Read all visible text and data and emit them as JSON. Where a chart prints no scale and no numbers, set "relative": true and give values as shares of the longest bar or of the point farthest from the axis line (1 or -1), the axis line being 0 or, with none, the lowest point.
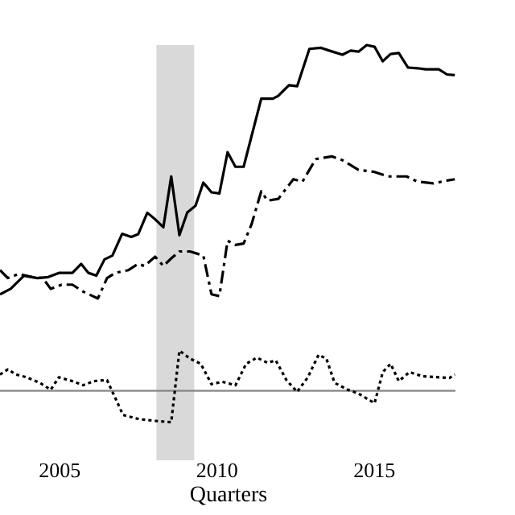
{
  "chart_data": {
    "type": "line",
    "relative": true,
    "xlabel": "Quarters",
    "xlim": [
      2003.13,
      2017.6
    ],
    "xticks": [
      2005,
      2010,
      2015
    ],
    "marker": "none",
    "bands": [
      {
        "axis": "x",
        "from": 2008.1,
        "to": 2009.3,
        "color": "#d9d9d9"
      }
    ],
    "series": [
      {
        "color": "#000000",
        "line_style": "solid",
        "x": [
          2003.13,
          2003.47,
          2003.89,
          2004.32,
          2004.66,
          2005.0,
          2005.43,
          2005.71,
          2005.94,
          2006.19,
          2006.45,
          2006.7,
          2007.01,
          2007.3,
          2007.52,
          2007.81,
          2008.06,
          2008.32,
          2008.57,
          2008.83,
          2009.08,
          2009.34,
          2009.59,
          2009.85,
          2010.1,
          2010.36,
          2010.61,
          2010.87,
          2011.43,
          2011.8,
          2011.97,
          2012.31,
          2012.57,
          2012.96,
          2013.33,
          2013.59,
          2014.01,
          2014.27,
          2014.52,
          2014.78,
          2015.03,
          2015.29,
          2015.54,
          2015.8,
          2016.09,
          2016.39,
          2016.65,
          2017.07,
          2017.33,
          2017.58
        ],
        "values": [
          0.279,
          0.295,
          0.333,
          0.326,
          0.329,
          0.341,
          0.341,
          0.367,
          0.341,
          0.333,
          0.38,
          0.391,
          0.454,
          0.445,
          0.453,
          0.515,
          0.496,
          0.473,
          0.62,
          0.45,
          0.516,
          0.535,
          0.602,
          0.574,
          0.571,
          0.69,
          0.648,
          0.648,
          0.845,
          0.845,
          0.853,
          0.884,
          0.881,
          0.989,
          0.992,
          0.984,
          0.972,
          0.984,
          0.981,
          1.0,
          0.995,
          0.953,
          0.974,
          0.977,
          0.935,
          0.933,
          0.93,
          0.93,
          0.915,
          0.913
        ]
      },
      {
        "color": "#000000",
        "line_style": "dashed",
        "x": [
          2003.13,
          2003.38,
          2003.72,
          2004.15,
          2004.49,
          2004.74,
          2005.09,
          2005.43,
          2005.77,
          2006.24,
          2006.53,
          2006.79,
          2007.21,
          2007.52,
          2007.72,
          2008.06,
          2008.32,
          2008.57,
          2008.83,
          2009.17,
          2009.59,
          2009.85,
          2010.1,
          2010.36,
          2010.61,
          2010.87,
          2011.12,
          2011.43,
          2011.63,
          2011.97,
          2012.45,
          2012.74,
          2013.16,
          2013.67,
          2014.01,
          2014.52,
          2015.03,
          2015.46,
          2016.05,
          2016.39,
          2016.9,
          2017.33,
          2017.58
        ],
        "values": [
          0.349,
          0.326,
          0.338,
          0.329,
          0.326,
          0.295,
          0.307,
          0.307,
          0.287,
          0.267,
          0.326,
          0.341,
          0.349,
          0.367,
          0.361,
          0.388,
          0.361,
          0.383,
          0.403,
          0.403,
          0.391,
          0.279,
          0.274,
          0.434,
          0.422,
          0.426,
          0.481,
          0.577,
          0.55,
          0.555,
          0.612,
          0.605,
          0.67,
          0.678,
          0.667,
          0.639,
          0.633,
          0.62,
          0.62,
          0.605,
          0.6,
          0.608,
          0.612
        ]
      },
      {
        "color": "#000000",
        "line_style": "dotted",
        "x": [
          2003.13,
          2003.38,
          2003.64,
          2003.98,
          2004.4,
          2004.74,
          2005.0,
          2005.43,
          2005.77,
          2006.11,
          2006.53,
          2007.04,
          2007.55,
          2008.06,
          2008.57,
          2008.83,
          2009.17,
          2009.51,
          2009.85,
          2010.19,
          2010.61,
          2010.95,
          2011.29,
          2011.63,
          2011.89,
          2012.23,
          2012.57,
          2012.91,
          2013.25,
          2013.5,
          2013.76,
          2014.18,
          2014.52,
          2015.03,
          2015.29,
          2015.54,
          2015.8,
          2016.14,
          2016.56,
          2017.07,
          2017.41,
          2017.58
        ],
        "values": [
          0.047,
          0.062,
          0.047,
          0.039,
          0.023,
          0.003,
          0.039,
          0.028,
          0.016,
          0.028,
          0.031,
          -0.07,
          -0.082,
          -0.087,
          -0.091,
          0.116,
          0.093,
          0.078,
          0.019,
          0.026,
          0.016,
          0.078,
          0.096,
          0.081,
          0.088,
          0.031,
          -0.003,
          0.039,
          0.104,
          0.093,
          0.023,
          0.003,
          -0.008,
          -0.036,
          0.054,
          0.078,
          0.028,
          0.054,
          0.042,
          0.039,
          0.037,
          0.047
        ]
      }
    ]
  }
}
